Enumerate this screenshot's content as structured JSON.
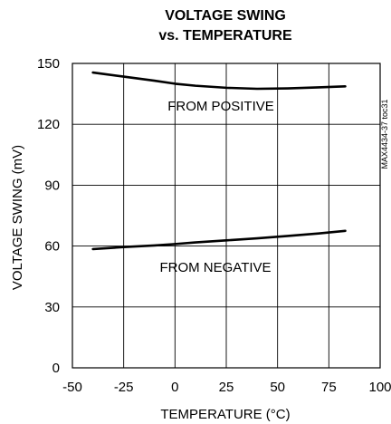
{
  "chart_data": {
    "type": "line",
    "title_lines": [
      "VOLTAGE SWING",
      "vs. TEMPERATURE"
    ],
    "xlabel": "TEMPERATURE (°C)",
    "ylabel": "VOLTAGE SWING (mV)",
    "xlim": [
      -50,
      100
    ],
    "ylim": [
      0,
      150
    ],
    "xticks": [
      -50,
      -25,
      0,
      25,
      50,
      75,
      100
    ],
    "yticks": [
      0,
      30,
      60,
      90,
      120,
      150
    ],
    "grid": true,
    "legend": "none",
    "part_id": "MAX4434-37 toc31",
    "series": [
      {
        "annotation": "FROM POSITIVE",
        "x": [
          -40,
          -25,
          -10,
          0,
          10,
          25,
          40,
          55,
          70,
          83
        ],
        "y": [
          145.5,
          143.5,
          141.5,
          140,
          139,
          138,
          137.5,
          137.7,
          138.2,
          138.7
        ]
      },
      {
        "annotation": "FROM NEGATIVE",
        "x": [
          -40,
          -25,
          -10,
          0,
          10,
          25,
          40,
          55,
          70,
          83
        ],
        "y": [
          58.5,
          59.5,
          60.3,
          61,
          61.8,
          62.8,
          63.8,
          65,
          66.2,
          67.5
        ]
      }
    ]
  }
}
